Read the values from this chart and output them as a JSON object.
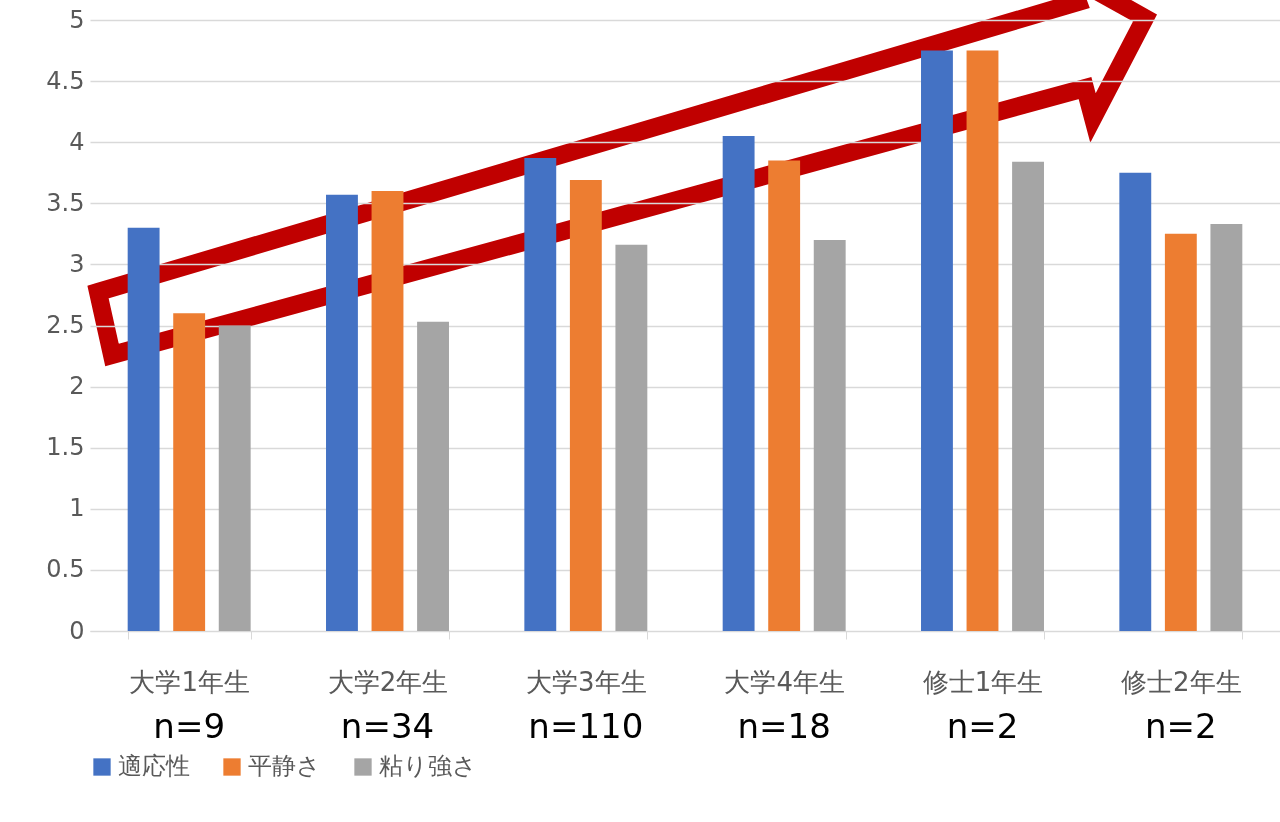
{
  "chart_data": {
    "type": "bar",
    "categories": [
      "大学1年生",
      "大学2年生",
      "大学3年生",
      "大学4年生",
      "修士1年生",
      "修士2年生"
    ],
    "series": [
      {
        "name": "適応性",
        "color": "#4472c4",
        "values": [
          3.3,
          3.57,
          3.87,
          4.05,
          4.75,
          3.75
        ]
      },
      {
        "name": "平静さ",
        "color": "#ed7d31",
        "values": [
          2.6,
          3.6,
          3.69,
          3.85,
          4.75,
          3.25
        ]
      },
      {
        "name": "粘り強さ",
        "color": "#a5a5a5",
        "values": [
          2.5,
          2.53,
          3.16,
          3.2,
          3.84,
          3.33
        ]
      }
    ],
    "ylim": [
      0,
      5
    ],
    "yticks": [
      0,
      0.5,
      1,
      1.5,
      2,
      2.5,
      3,
      3.5,
      4,
      4.5,
      5
    ],
    "grid": "y",
    "legend": "bottom",
    "annotations": [
      "n=9",
      "n=34",
      "n=110",
      "n=18",
      "n=2",
      "n=2"
    ]
  }
}
